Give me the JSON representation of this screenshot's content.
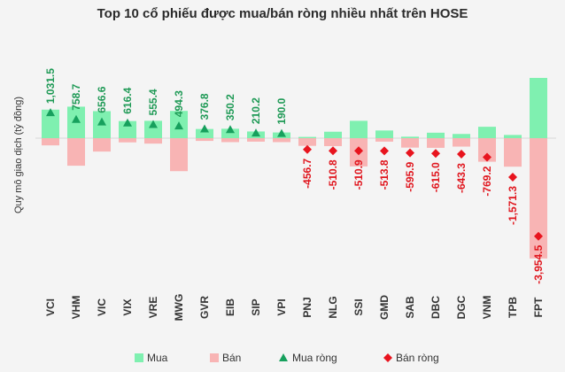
{
  "chart_data": {
    "type": "bar",
    "title": "Top 10 cổ phiếu được mua/bán ròng nhiều nhất trên HOSE",
    "ylabel": "Quy mô giao dịch (tỷ đồng)",
    "xlabel": "",
    "categories": [
      "VCI",
      "VHM",
      "VIC",
      "VIX",
      "VRE",
      "MWG",
      "GVR",
      "EIB",
      "SIP",
      "VPI",
      "PNJ",
      "NLG",
      "SSI",
      "GMD",
      "SAB",
      "DBC",
      "DGC",
      "VNM",
      "TPB",
      "FPT"
    ],
    "series": [
      {
        "name": "Mua",
        "values": [
          1150,
          1270,
          1090,
          690,
          700,
          1100,
          370,
          380,
          270,
          230,
          50,
          260,
          700,
          310,
          60,
          220,
          170,
          460,
          130,
          2430
        ]
      },
      {
        "name": "Bán",
        "values": [
          -290,
          -1110,
          -540,
          -170,
          -220,
          -1330,
          -110,
          -160,
          -140,
          -160,
          -310,
          -320,
          -1140,
          -140,
          -380,
          -390,
          -340,
          -950,
          -1150,
          -4850
        ]
      },
      {
        "name": "Mua ròng",
        "values": [
          1031.5,
          758.7,
          656.6,
          616.4,
          555.4,
          494.3,
          376.8,
          350.2,
          210.2,
          190.0,
          null,
          null,
          null,
          null,
          null,
          null,
          null,
          null,
          null,
          null
        ]
      },
      {
        "name": "Bán ròng",
        "values": [
          null,
          null,
          null,
          null,
          null,
          null,
          null,
          null,
          null,
          null,
          -456.7,
          -510.8,
          -510.9,
          -513.8,
          -595.9,
          -615.0,
          -643.3,
          -769.2,
          -1571.3,
          -3954.5
        ]
      }
    ],
    "data_labels": [
      "1,031.5",
      "758.7",
      "656.6",
      "616.4",
      "555.4",
      "494.3",
      "376.8",
      "350.2",
      "210.2",
      "190.0",
      "-456.7",
      "-510.8",
      "-510.9",
      "-513.8",
      "-595.9",
      "-615.0",
      "-643.3",
      "-769.2",
      "-1,571.3",
      "-3,954.5"
    ],
    "ylim": [
      -5000,
      2500
    ],
    "grid": false,
    "legend": "bottom",
    "colors": {
      "mua": "#7ff0b0",
      "ban": "#f8b4b4",
      "mua_rong": "#17a05d",
      "ban_rong": "#e8141e",
      "label_pos": "#1f9a56",
      "label_neg": "#e0151d"
    }
  }
}
